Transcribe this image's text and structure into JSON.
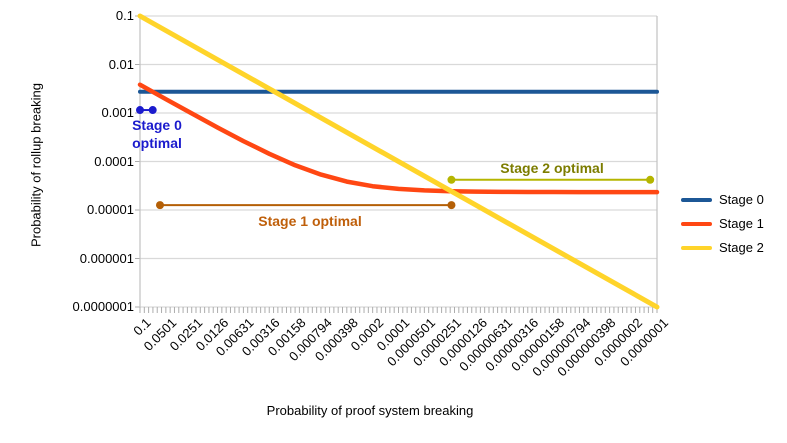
{
  "axes": {
    "x_title": "Probability of proof system breaking",
    "y_title": "Probability of rollup breaking",
    "y_ticks": [
      {
        "label": "0.1",
        "value": 0.1
      },
      {
        "label": "0.01",
        "value": 0.01
      },
      {
        "label": "0.001",
        "value": 0.001
      },
      {
        "label": "0.0001",
        "value": 0.0001
      },
      {
        "label": "0.00001",
        "value": 1e-05
      },
      {
        "label": "0.000001",
        "value": 1e-06
      },
      {
        "label": "0.0000001",
        "value": 1e-07
      }
    ],
    "x_ticks": [
      {
        "label": "0.1",
        "value": 0.1
      },
      {
        "label": "0.0501",
        "value": 0.0501
      },
      {
        "label": "0.0251",
        "value": 0.0251
      },
      {
        "label": "0.0126",
        "value": 0.0126
      },
      {
        "label": "0.00631",
        "value": 0.00631
      },
      {
        "label": "0.00316",
        "value": 0.00316
      },
      {
        "label": "0.00158",
        "value": 0.00158
      },
      {
        "label": "0.000794",
        "value": 0.000794
      },
      {
        "label": "0.000398",
        "value": 0.000398
      },
      {
        "label": "0.0002",
        "value": 0.0002
      },
      {
        "label": "0.0001",
        "value": 0.0001
      },
      {
        "label": "0.0000501",
        "value": 5.01e-05
      },
      {
        "label": "0.0000251",
        "value": 2.51e-05
      },
      {
        "label": "0.0000126",
        "value": 1.26e-05
      },
      {
        "label": "0.00000631",
        "value": 6.31e-06
      },
      {
        "label": "0.00000316",
        "value": 3.16e-06
      },
      {
        "label": "0.00000158",
        "value": 1.58e-06
      },
      {
        "label": "0.000000794",
        "value": 7.94e-07
      },
      {
        "label": "0.000000398",
        "value": 3.98e-07
      },
      {
        "label": "0.0000002",
        "value": 2e-07
      },
      {
        "label": "0.0000001",
        "value": 1e-07
      }
    ]
  },
  "legend": [
    {
      "label": "Stage 0",
      "color": "#1c5796"
    },
    {
      "label": "Stage 1",
      "color": "#ff4713"
    },
    {
      "label": "Stage 2",
      "color": "#ffd42a"
    }
  ],
  "chart_data": {
    "type": "line",
    "x_scale": "log",
    "y_scale": "log",
    "xlim": [
      0.1,
      1e-07
    ],
    "ylim": [
      1e-07,
      0.1
    ],
    "grid": "horizontal-decades",
    "series": [
      {
        "name": "Stage 0",
        "color": "#1c5796",
        "width": 4,
        "points": [
          [
            0.1,
            0.00273
          ],
          [
            1e-07,
            0.00273
          ]
        ]
      },
      {
        "name": "Stage 1",
        "color": "#ff4713",
        "width": 4.5,
        "points": [
          [
            0.1,
            0.00383
          ],
          [
            0.0501,
            0.00193
          ],
          [
            0.0251,
            0.00098
          ],
          [
            0.0126,
            0.000503
          ],
          [
            0.00631,
            0.000264
          ],
          [
            0.00316,
            0.000144
          ],
          [
            0.00158,
            8.36e-05
          ],
          [
            0.000794,
            5.36e-05
          ],
          [
            0.000398,
            3.86e-05
          ],
          [
            0.0002,
            3.1e-05
          ],
          [
            0.0001,
            2.72e-05
          ],
          [
            5.01e-05,
            2.53e-05
          ],
          [
            2.51e-05,
            2.44e-05
          ],
          [
            1.26e-05,
            2.39e-05
          ],
          [
            6.31e-06,
            2.36e-05
          ],
          [
            3.16e-06,
            2.35e-05
          ],
          [
            1.58e-06,
            2.35e-05
          ],
          [
            7.94e-07,
            2.34e-05
          ],
          [
            3.98e-07,
            2.34e-05
          ],
          [
            2e-07,
            2.34e-05
          ],
          [
            1e-07,
            2.34e-05
          ]
        ]
      },
      {
        "name": "Stage 2",
        "color": "#ffd42a",
        "width": 5,
        "points": [
          [
            0.1,
            0.1
          ],
          [
            1e-07,
            1e-07
          ]
        ]
      }
    ],
    "annotations": [
      {
        "label": "Stage 0 optimal",
        "color": "#1b1bcd",
        "text_color": "#1b1bcd",
        "x1": 0.1,
        "x2": 0.0712,
        "y": 0.00115
      },
      {
        "label": "Stage 1 optimal",
        "color": "#b45f06",
        "text_color": "#bf5f0a",
        "x1": 0.0586,
        "x2": 2.43e-05,
        "y": 1.26e-05
      },
      {
        "label": "Stage 2 optimal",
        "color": "#b5b500",
        "text_color": "#7d7d00",
        "x1": 2.43e-05,
        "x2": 1.2e-07,
        "y": 4.2e-05
      }
    ]
  }
}
